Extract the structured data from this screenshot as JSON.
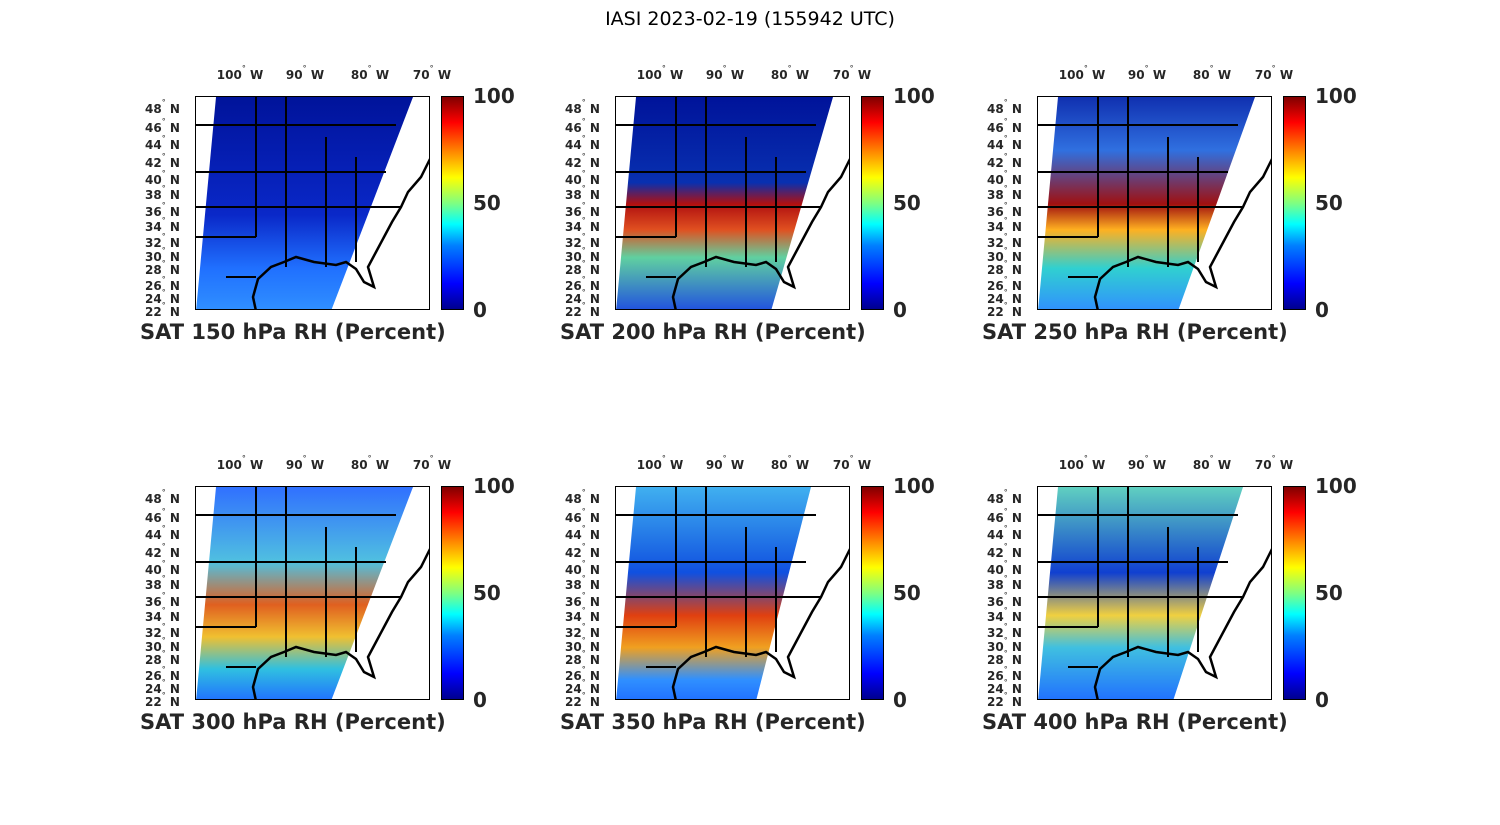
{
  "title": "IASI 2023-02-19 (155942 UTC)",
  "lon_labels": [
    "100",
    "90",
    "80",
    "70"
  ],
  "lon_suffix": "W",
  "lat_labels": [
    "48",
    "46",
    "44",
    "42",
    "40",
    "38",
    "36",
    "34",
    "32",
    "30",
    "28",
    "26",
    "24",
    "22"
  ],
  "lat_suffix": "N",
  "colorbar_ticks": [
    "100",
    "50",
    "0"
  ],
  "colorbar_range": [
    0,
    100
  ],
  "panels": [
    {
      "title": "SAT 150 hPa RH (Percent)",
      "level_hpa": 150
    },
    {
      "title": "SAT 200 hPa RH (Percent)",
      "level_hpa": 200
    },
    {
      "title": "SAT 250 hPa RH (Percent)",
      "level_hpa": 250
    },
    {
      "title": "SAT 300 hPa RH (Percent)",
      "level_hpa": 300
    },
    {
      "title": "SAT 350 hPa RH (Percent)",
      "level_hpa": 350
    },
    {
      "title": "SAT 400 hPa RH (Percent)",
      "level_hpa": 400
    }
  ]
}
